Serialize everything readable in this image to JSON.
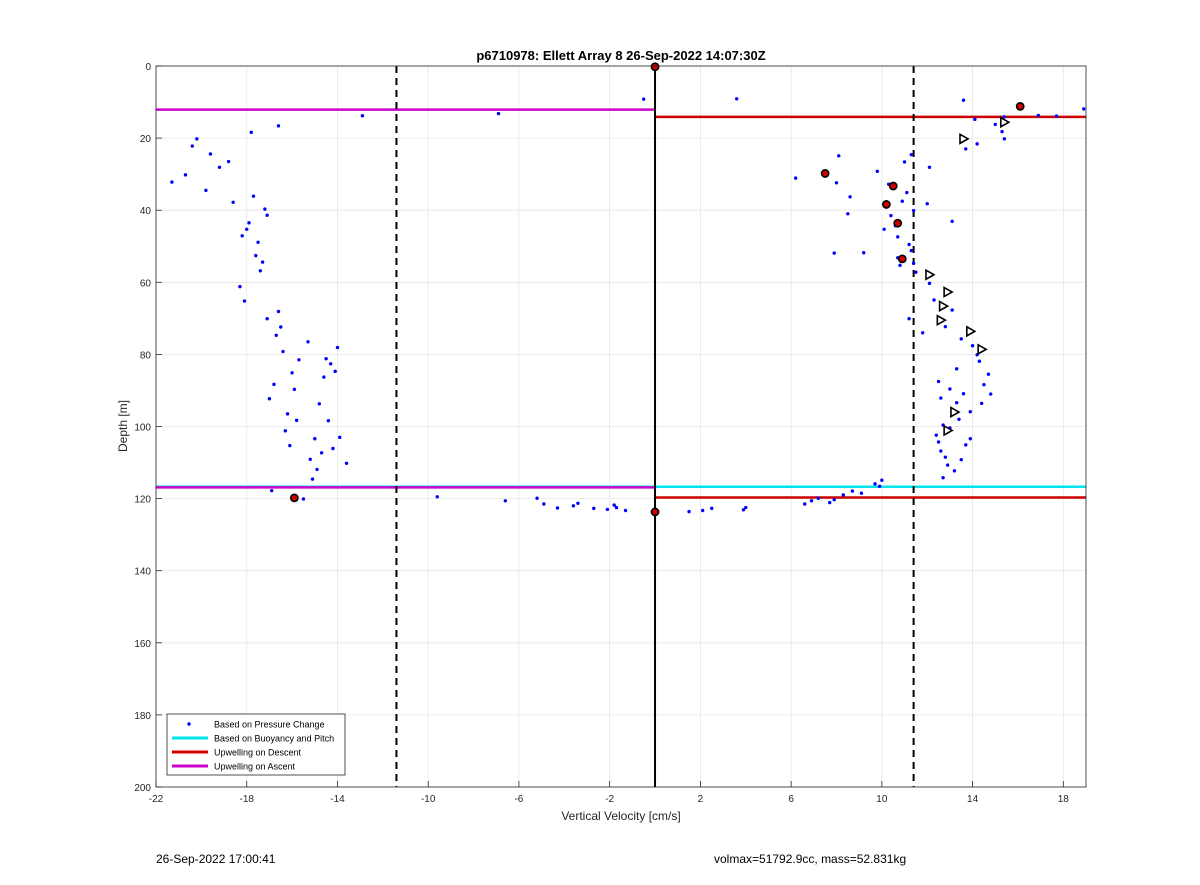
{
  "chart_data": {
    "type": "scatter",
    "title": "p6710978: Ellett Array 8 26-Sep-2022 14:07:30Z",
    "xlabel": "Vertical Velocity [cm/s]",
    "ylabel": "Depth [m]",
    "xlim": [
      -22,
      19
    ],
    "ylim": [
      0,
      200
    ],
    "y_reversed": true,
    "grid": true,
    "xticks": [
      -22,
      -18,
      -14,
      -10,
      -6,
      -2,
      2,
      6,
      10,
      14,
      18
    ],
    "yticks": [
      0,
      20,
      40,
      60,
      80,
      100,
      120,
      140,
      160,
      180,
      200
    ],
    "legend": {
      "placement": "bottom-left",
      "entries": [
        {
          "label": "Based on Pressure Change",
          "style": "dot",
          "color": "#0000ff"
        },
        {
          "label": "Based on Buoyancy and Pitch",
          "style": "line",
          "color": "#00e5ee"
        },
        {
          "label": "Upwelling on Descent",
          "style": "line",
          "color": "#cc0000"
        },
        {
          "label": "Upwelling on Ascent",
          "style": "line",
          "color": "#cc00cc"
        }
      ]
    },
    "vertical_lines": [
      {
        "x": -11.4,
        "style": "dashed",
        "color": "#000000"
      },
      {
        "x": 11.4,
        "style": "dashed",
        "color": "#000000"
      },
      {
        "x": 0,
        "style": "solid",
        "color": "#000000"
      }
    ],
    "horizontal_segments": [
      {
        "color": "#cc00cc",
        "y": 12.1,
        "x_from": -22,
        "x_to": 0
      },
      {
        "color": "#cc0000",
        "y": 14.1,
        "x_from": 0,
        "x_to": 19
      },
      {
        "color": "#00e5ee",
        "y": 116.7,
        "x_from": -22,
        "x_to": 19
      },
      {
        "color": "#cc00cc",
        "y": 116.9,
        "x_from": -22,
        "x_to": 0
      },
      {
        "color": "#cc0000",
        "y": 119.7,
        "x_from": 0,
        "x_to": 19
      }
    ],
    "ascent_points": [
      [
        -21.3,
        32.2
      ],
      [
        -20.7,
        30.2
      ],
      [
        -20.4,
        22.2
      ],
      [
        -20.2,
        20.2
      ],
      [
        -19.8,
        34.5
      ],
      [
        -19.6,
        24.4
      ],
      [
        -19.2,
        28.1
      ],
      [
        -18.8,
        26.5
      ],
      [
        -18.6,
        37.8
      ],
      [
        -18.3,
        61.2
      ],
      [
        -18.2,
        47.1
      ],
      [
        -18.1,
        65.2
      ],
      [
        -18.0,
        45.3
      ],
      [
        -17.9,
        43.5
      ],
      [
        -17.8,
        18.4
      ],
      [
        -17.7,
        36.1
      ],
      [
        -17.6,
        52.6
      ],
      [
        -17.5,
        48.9
      ],
      [
        -17.4,
        56.8
      ],
      [
        -17.3,
        54.4
      ],
      [
        -17.2,
        39.7
      ],
      [
        -17.1,
        41.4
      ],
      [
        -17.1,
        70.1
      ],
      [
        -17.0,
        92.3
      ],
      [
        -16.9,
        117.8
      ],
      [
        -16.8,
        88.3
      ],
      [
        -16.7,
        74.7
      ],
      [
        -16.6,
        68.1
      ],
      [
        -16.6,
        16.6
      ],
      [
        -16.5,
        72.4
      ],
      [
        -16.4,
        79.2
      ],
      [
        -16.3,
        101.2
      ],
      [
        -16.2,
        96.5
      ],
      [
        -16.1,
        105.3
      ],
      [
        -16.0,
        85.1
      ],
      [
        -15.9,
        89.7
      ],
      [
        -15.8,
        98.3
      ],
      [
        -15.7,
        81.5
      ],
      [
        -15.5,
        120.1
      ],
      [
        -15.3,
        76.5
      ],
      [
        -15.2,
        109.1
      ],
      [
        -15.1,
        114.6
      ],
      [
        -15.0,
        103.4
      ],
      [
        -14.9,
        111.9
      ],
      [
        -14.8,
        93.7
      ],
      [
        -14.7,
        107.3
      ],
      [
        -14.6,
        86.3
      ],
      [
        -14.5,
        81.2
      ],
      [
        -14.4,
        98.4
      ],
      [
        -14.3,
        82.6
      ],
      [
        -14.2,
        106.1
      ],
      [
        -14.1,
        84.7
      ],
      [
        -14.0,
        78.1
      ],
      [
        -13.9,
        103.0
      ],
      [
        -13.6,
        110.2
      ],
      [
        -12.9,
        13.8
      ],
      [
        -9.6,
        119.5
      ],
      [
        -6.6,
        120.6
      ],
      [
        -6.9,
        13.2
      ],
      [
        -5.2,
        119.9
      ],
      [
        -4.9,
        121.5
      ],
      [
        -4.3,
        122.6
      ],
      [
        -3.6,
        122.0
      ],
      [
        -3.4,
        121.3
      ],
      [
        -2.7,
        122.7
      ],
      [
        -2.1,
        123.0
      ],
      [
        -1.8,
        121.8
      ],
      [
        -1.7,
        122.5
      ],
      [
        -1.3,
        123.3
      ],
      [
        -0.5,
        9.2
      ]
    ],
    "descent_points": [
      [
        1.5,
        123.6
      ],
      [
        2.1,
        123.3
      ],
      [
        2.5,
        122.7
      ],
      [
        3.6,
        9.1
      ],
      [
        3.9,
        123.1
      ],
      [
        4.0,
        122.5
      ],
      [
        6.2,
        31.1
      ],
      [
        6.6,
        121.5
      ],
      [
        6.9,
        120.6
      ],
      [
        7.2,
        119.9
      ],
      [
        7.5,
        29.6
      ],
      [
        7.7,
        121.1
      ],
      [
        7.9,
        120.3
      ],
      [
        7.9,
        51.9
      ],
      [
        8.0,
        32.4
      ],
      [
        8.1,
        24.9
      ],
      [
        8.3,
        119.0
      ],
      [
        8.5,
        41.0
      ],
      [
        8.6,
        36.3
      ],
      [
        8.7,
        117.9
      ],
      [
        9.1,
        118.5
      ],
      [
        9.2,
        51.8
      ],
      [
        9.7,
        115.9
      ],
      [
        9.8,
        29.2
      ],
      [
        9.9,
        116.6
      ],
      [
        10.0,
        114.9
      ],
      [
        10.1,
        45.3
      ],
      [
        10.2,
        38.1
      ],
      [
        10.3,
        32.8
      ],
      [
        10.4,
        41.5
      ],
      [
        10.5,
        33.4
      ],
      [
        10.6,
        44.3
      ],
      [
        10.7,
        47.4
      ],
      [
        10.7,
        53.2
      ],
      [
        10.8,
        43.4
      ],
      [
        10.8,
        55.3
      ],
      [
        10.9,
        37.5
      ],
      [
        11.0,
        26.6
      ],
      [
        11.1,
        35.1
      ],
      [
        11.2,
        49.5
      ],
      [
        11.3,
        51.2
      ],
      [
        11.3,
        24.6
      ],
      [
        11.4,
        40.1
      ],
      [
        11.4,
        54.7
      ],
      [
        11.5,
        57.2
      ],
      [
        11.2,
        70.1
      ],
      [
        11.8,
        74.0
      ],
      [
        12.1,
        28.1
      ],
      [
        12.0,
        38.2
      ],
      [
        12.1,
        60.3
      ],
      [
        12.3,
        64.9
      ],
      [
        12.4,
        102.4
      ],
      [
        12.5,
        87.5
      ],
      [
        12.5,
        104.3
      ],
      [
        12.6,
        92.1
      ],
      [
        12.7,
        99.6
      ],
      [
        12.6,
        106.8
      ],
      [
        12.7,
        114.2
      ],
      [
        12.8,
        72.3
      ],
      [
        12.8,
        108.5
      ],
      [
        12.9,
        110.7
      ],
      [
        13.0,
        100.4
      ],
      [
        13.0,
        89.6
      ],
      [
        13.1,
        43.1
      ],
      [
        13.1,
        67.7
      ],
      [
        13.2,
        112.3
      ],
      [
        13.3,
        84.0
      ],
      [
        13.3,
        93.4
      ],
      [
        13.4,
        98.0
      ],
      [
        13.5,
        109.2
      ],
      [
        13.5,
        75.7
      ],
      [
        13.6,
        90.9
      ],
      [
        13.7,
        23.0
      ],
      [
        13.7,
        105.1
      ],
      [
        13.9,
        95.9
      ],
      [
        13.9,
        103.4
      ],
      [
        14.0,
        77.6
      ],
      [
        14.1,
        14.8
      ],
      [
        14.2,
        80.1
      ],
      [
        14.2,
        21.6
      ],
      [
        14.3,
        81.9
      ],
      [
        14.4,
        78.8
      ],
      [
        14.4,
        93.6
      ],
      [
        14.5,
        88.4
      ],
      [
        14.7,
        85.5
      ],
      [
        14.8,
        91.0
      ],
      [
        13.6,
        9.5
      ],
      [
        15.0,
        16.2
      ],
      [
        15.3,
        18.2
      ],
      [
        15.4,
        20.2
      ],
      [
        15.4,
        14.1
      ],
      [
        16.1,
        11.2
      ],
      [
        16.9,
        13.7
      ],
      [
        17.7,
        13.9
      ],
      [
        18.9,
        11.9
      ]
    ],
    "red_markers": [
      [
        0,
        0.2
      ],
      [
        16.1,
        11.2
      ],
      [
        -15.9,
        119.8
      ],
      [
        0,
        123.7
      ],
      [
        7.5,
        29.8
      ],
      [
        10.5,
        33.3
      ],
      [
        10.2,
        38.4
      ],
      [
        10.7,
        43.6
      ],
      [
        10.9,
        53.5
      ]
    ],
    "triangle_markers": [
      [
        13.6,
        20.2
      ],
      [
        15.4,
        15.6
      ],
      [
        12.1,
        57.9
      ],
      [
        12.9,
        62.7
      ],
      [
        12.7,
        66.6
      ],
      [
        12.6,
        70.5
      ],
      [
        13.9,
        73.6
      ],
      [
        14.4,
        78.6
      ],
      [
        13.2,
        96.0
      ],
      [
        12.9,
        101.1
      ]
    ],
    "footer_left": "26-Sep-2022 17:00:41",
    "footer_right": "volmax=51792.9cc, mass=52.831kg"
  }
}
